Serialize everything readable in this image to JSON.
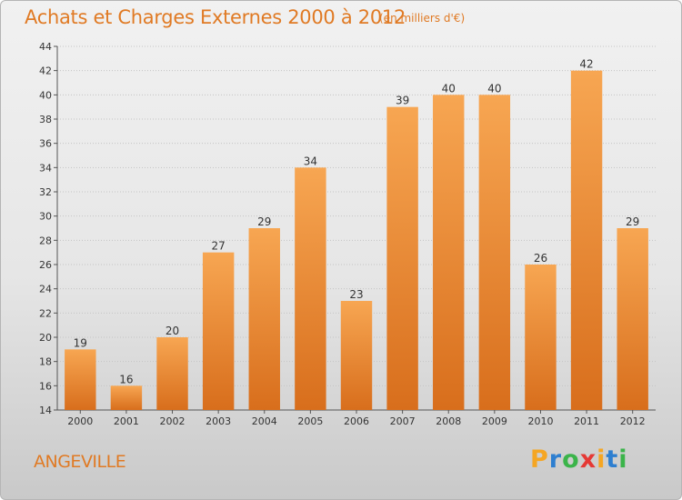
{
  "chart_data": {
    "type": "bar",
    "title": "Achats et Charges Externes 2000 à 2012",
    "subtitle": "(en milliers d'€)",
    "categories": [
      "2000",
      "2001",
      "2002",
      "2003",
      "2004",
      "2005",
      "2006",
      "2007",
      "2008",
      "2009",
      "2010",
      "2011",
      "2012"
    ],
    "values": [
      19,
      16,
      20,
      27,
      29,
      34,
      23,
      39,
      40,
      40,
      26,
      42,
      29
    ],
    "ylim": [
      14,
      44
    ],
    "yticks": [
      14,
      16,
      18,
      20,
      22,
      24,
      26,
      28,
      30,
      32,
      34,
      36,
      38,
      40,
      42,
      44
    ],
    "grid": true,
    "bar_color_light": "#f7a652",
    "bar_color_dark": "#d86e1c"
  },
  "footer": {
    "commune": "ANGEVILLE",
    "brand_letters": [
      "P",
      "r",
      "o",
      "x",
      "i",
      "t",
      "i"
    ],
    "brand_colors": [
      "#f5a623",
      "#2e7fd0",
      "#3bb44a",
      "#e53935",
      "#f5a623",
      "#2e7fd0",
      "#3bb44a"
    ]
  }
}
